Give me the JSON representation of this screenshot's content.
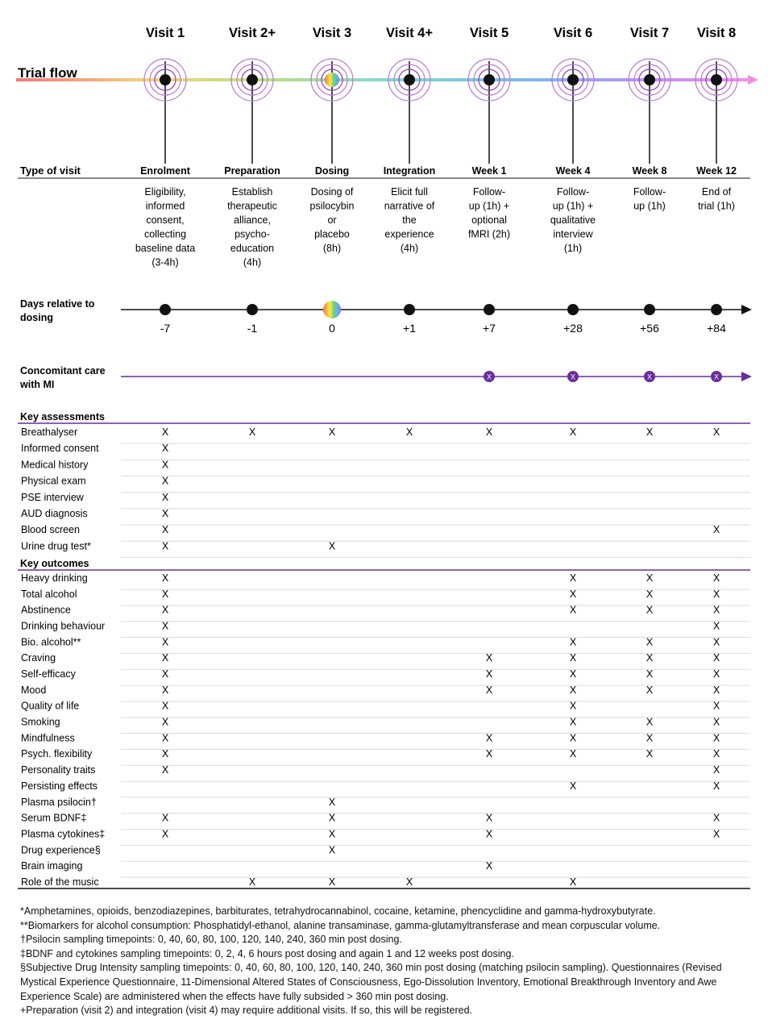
{
  "visits": [
    {
      "label": "Visit 1",
      "type": "Enrolment",
      "desc": [
        "Eligibility,",
        "informed",
        "consent,",
        "collecting",
        "baseline data",
        "(3-4h)"
      ],
      "day": "-7"
    },
    {
      "label": "Visit 2+",
      "type": "Preparation",
      "desc": [
        "Establish",
        "therapeutic",
        "alliance,",
        "psycho-",
        "education",
        "(4h)"
      ],
      "day": "-1"
    },
    {
      "label": "Visit 3",
      "type": "Dosing",
      "desc": [
        "Dosing of",
        "psilocybin",
        "or",
        "placebo",
        "(8h)"
      ],
      "day": "0"
    },
    {
      "label": "Visit 4+",
      "type": "Integration",
      "desc": [
        "Elicit full",
        "narrative of",
        "the",
        "experience",
        "(4h)"
      ],
      "day": "+1"
    },
    {
      "label": "Visit 5",
      "type": "Week 1",
      "desc": [
        "Follow-",
        "up (1h) +",
        "optional",
        "fMRI (2h)"
      ],
      "day": "+7"
    },
    {
      "label": "Visit 6",
      "type": "Week 4",
      "desc": [
        "Follow-",
        "up (1h) +",
        "qualitative",
        "interview",
        "(1h)"
      ],
      "day": "+28"
    },
    {
      "label": "Visit 7",
      "type": "Week 8",
      "desc": [
        "Follow-",
        "up (1h)"
      ],
      "day": "+56"
    },
    {
      "label": "Visit 8",
      "type": "Week 12",
      "desc": [
        "End of",
        "trial (1h)"
      ],
      "day": "+84"
    }
  ],
  "labels": {
    "trial_flow": "Trial flow",
    "type_of_visit": "Type of visit",
    "days_line1": "Days relative to",
    "days_line2": "dosing",
    "care_line1": "Concomitant care",
    "care_line2": "with MI",
    "key_assessments": "Key assessments",
    "key_outcomes": "Key outcomes",
    "mark": "X"
  },
  "concomitant_care_visits": [
    4,
    5,
    6,
    7
  ],
  "assessments": [
    {
      "name": "Breathalyser",
      "marks": [
        0,
        1,
        2,
        3,
        4,
        5,
        6,
        7
      ]
    },
    {
      "name": "Informed consent",
      "marks": [
        0
      ]
    },
    {
      "name": "Medical history",
      "marks": [
        0
      ]
    },
    {
      "name": "Physical exam",
      "marks": [
        0
      ]
    },
    {
      "name": "PSE interview",
      "marks": [
        0
      ]
    },
    {
      "name": "AUD diagnosis",
      "marks": [
        0
      ]
    },
    {
      "name": "Blood screen",
      "marks": [
        0,
        7
      ]
    },
    {
      "name": "Urine drug test*",
      "marks": [
        0,
        2
      ]
    }
  ],
  "outcomes": [
    {
      "name": "Heavy drinking",
      "marks": [
        0,
        5,
        6,
        7
      ]
    },
    {
      "name": "Total alcohol",
      "marks": [
        0,
        5,
        6,
        7
      ]
    },
    {
      "name": "Abstinence",
      "marks": [
        0,
        5,
        6,
        7
      ]
    },
    {
      "name": "Drinking behaviour",
      "marks": [
        0,
        7
      ]
    },
    {
      "name": "Bio. alcohol**",
      "marks": [
        0,
        5,
        6,
        7
      ]
    },
    {
      "name": "Craving",
      "marks": [
        0,
        4,
        5,
        6,
        7
      ]
    },
    {
      "name": "Self-efficacy",
      "marks": [
        0,
        4,
        5,
        6,
        7
      ]
    },
    {
      "name": "Mood",
      "marks": [
        0,
        4,
        5,
        6,
        7
      ]
    },
    {
      "name": "Quality of life",
      "marks": [
        0,
        5,
        7
      ]
    },
    {
      "name": "Smoking",
      "marks": [
        0,
        5,
        6,
        7
      ]
    },
    {
      "name": "Mindfulness",
      "marks": [
        0,
        4,
        5,
        6,
        7
      ]
    },
    {
      "name": "Psych. flexibility",
      "marks": [
        0,
        4,
        5,
        6,
        7
      ]
    },
    {
      "name": "Personality traits",
      "marks": [
        0,
        7
      ]
    },
    {
      "name": "Persisting effects",
      "marks": [
        5,
        7
      ]
    },
    {
      "name": "Plasma psilocin†",
      "marks": [
        2
      ]
    },
    {
      "name": "Serum BDNF‡",
      "marks": [
        0,
        2,
        4,
        7
      ]
    },
    {
      "name": "Plasma cytokines‡",
      "marks": [
        0,
        2,
        4,
        7
      ]
    },
    {
      "name": "Drug experience§",
      "marks": [
        2
      ]
    },
    {
      "name": "Brain imaging",
      "marks": [
        4
      ]
    },
    {
      "name": "Role of the music",
      "marks": [
        1,
        2,
        3,
        5
      ]
    }
  ],
  "footnotes": [
    "*Amphetamines, opioids, benzodiazepines, barbiturates, tetrahydrocannabinol, cocaine, ketamine, phencyclidine and gamma-hydroxybutyrate.",
    "**Biomarkers for alcohol consumption: Phosphatidyl-ethanol, alanine transaminase, gamma-glutamyltransferase and mean corpuscular volume.",
    "†Psilocin sampling timepoints:  0, 40, 60, 80, 100, 120, 140, 240, 360 min post dosing.",
    "‡BDNF and cytokines sampling timepoints: 0, 2, 4, 6 hours post dosing and again 1 and 12 weeks post dosing.",
    "§Subjective Drug Intensity sampling timepoints: 0, 40, 60, 80, 100, 120, 140, 240, 360 min post dosing (matching psilocin sampling). Questionnaires (Revised Mystical Experience Questionnaire, 11-Dimensional Altered States of Consciousness, Ego-Dissolution Inventory, Emotional Breakthrough Inventory and Awe Experience Scale) are administered when the effects have fully subsided > 360 min post dosing.",
    "+Preparation (visit 2) and integration (visit 4) may require additional visits. If so, this will be registered."
  ],
  "colors": {
    "purple": "#6a2c9e",
    "light_purple": "#b77ad6",
    "pink": "#ee82ee",
    "row_line": "#dcdcdc"
  }
}
